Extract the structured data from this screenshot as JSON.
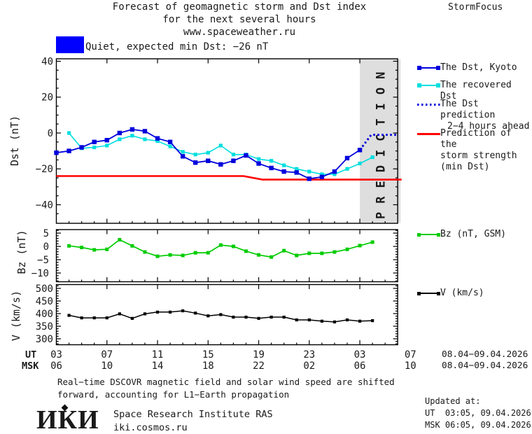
{
  "header": {
    "title_line1": "Forecast of geomagnetic storm and Dst index",
    "title_line2": "for the next several hours",
    "title_line3": "www.spaceweather.ru",
    "brand": "StormFocus"
  },
  "status_banner": {
    "label": "Quiet, expected min Dst: −26 nT"
  },
  "colors": {
    "kyoto_blue": "#0000dd",
    "recovered_cyan": "#00dede",
    "storm_red": "#ff0000",
    "bz_green": "#00cc00",
    "v_black": "#000000",
    "quiet_blue": "#0000ff",
    "band_gray": "#dedede",
    "band_text": "#c2c2c2",
    "frame_black": "#000000"
  },
  "prediction_band": {
    "label": "PREDICTION"
  },
  "legend": {
    "dst_kyoto": "The Dst, Kyoto",
    "recovered": "The recovered Dst",
    "prediction_line1": "The Dst prediction",
    "prediction_line2": "2−4 hours ahead",
    "storm_line1": "Prediction of the",
    "storm_line2": "storm strength",
    "storm_line3": "(min Dst)",
    "bz": "Bz (nT, GSM)",
    "v": "V (km/s)"
  },
  "x_axis": {
    "ut_header": "UT",
    "msk_header": "MSK",
    "tick_hours": [
      0,
      4,
      8,
      12,
      16,
      20,
      24,
      28
    ],
    "ut_labels": [
      "03",
      "07",
      "11",
      "15",
      "19",
      "23",
      "03",
      "07"
    ],
    "msk_labels": [
      "06",
      "10",
      "14",
      "18",
      "22",
      "02",
      "06",
      "10"
    ],
    "ut_date_range": "08.04−09.04.2026",
    "msk_date_range": "08.04−09.04.2026"
  },
  "chart_data": [
    {
      "type": "line",
      "ylabel": "Dst (nT)",
      "ylim": [
        -50,
        41
      ],
      "tick_values": [
        40,
        20,
        0,
        -20,
        -40
      ],
      "tick_labels": [
        "40",
        "20",
        "0",
        "−20",
        "−40"
      ],
      "x_axis_note": "hours UT, 03 UT 08.04.2026 to 06 UT 09.04.2026, data points hourly",
      "prediction_band_hours": [
        24,
        27
      ],
      "series": [
        {
          "key": "storm",
          "name": "Prediction of the storm strength (min Dst)",
          "color_key": "storm_red",
          "points": [
            [
              0,
              -24
            ],
            [
              14.8,
              -24
            ],
            [
              16.3,
              -26
            ],
            [
              27.3,
              -26
            ]
          ]
        },
        {
          "key": "recovered",
          "name": "The recovered Dst",
          "color_key": "recovered_cyan",
          "t_start": 1,
          "t_step": 1,
          "marker": "square",
          "values": [
            0,
            -8.5,
            -8,
            -7,
            -3.5,
            -1.5,
            -3.5,
            -4.5,
            -7.5,
            -10.5,
            -12,
            -11,
            -7,
            -12,
            -12,
            -14.5,
            -15.5,
            -18,
            -20,
            -21.5,
            -23,
            -23,
            -20,
            -17,
            -13.5
          ]
        },
        {
          "key": "kyoto",
          "name": "The Dst, Kyoto",
          "color_key": "kyoto_blue",
          "t_start": 0,
          "t_step": 1,
          "marker": "square",
          "values": [
            -11,
            -10,
            -8,
            -5,
            -4,
            0,
            2,
            1,
            -3,
            -5,
            -13,
            -16.5,
            -15.5,
            -17.5,
            -15.5,
            -12.5,
            -17,
            -19.5,
            -21.5,
            -22,
            -25.5,
            -24.5,
            -21.5,
            -14,
            -9.5
          ]
        },
        {
          "key": "prediction",
          "name": "The Dst prediction 2−4 hours ahead",
          "color_key": "kyoto_blue",
          "style": "dotted",
          "points": [
            [
              24,
              -9.5
            ],
            [
              24.9,
              -1
            ],
            [
              26.9,
              -1
            ]
          ]
        }
      ]
    },
    {
      "type": "line",
      "ylabel": "Bz (nT)",
      "ylim": [
        -13,
        6
      ],
      "tick_values": [
        5,
        0,
        -5,
        -10
      ],
      "tick_labels": [
        "5",
        "0",
        "−5",
        "−10"
      ],
      "series": [
        {
          "key": "bz",
          "name": "Bz (nT, GSM)",
          "color_key": "bz_green",
          "t_start": 1,
          "t_step": 1,
          "marker": "square",
          "values": [
            0.2,
            -0.4,
            -1.3,
            -1.1,
            2.5,
            0.2,
            -2.1,
            -3.7,
            -3.2,
            -3.4,
            -2.4,
            -2.4,
            0.5,
            0,
            -1.8,
            -3.2,
            -4,
            -1.6,
            -3.4,
            -2.6,
            -2.6,
            -2.1,
            -1.1,
            0.3,
            1.6
          ]
        }
      ]
    },
    {
      "type": "line",
      "ylabel": "V (km/s)",
      "ylim": [
        280,
        515
      ],
      "tick_values": [
        500,
        450,
        400,
        350,
        300
      ],
      "tick_labels": [
        "500",
        "450",
        "400",
        "350",
        "300"
      ],
      "series": [
        {
          "key": "v",
          "name": "V (km/s)",
          "color_key": "v_black",
          "t_start": 1,
          "t_step": 1,
          "marker": "square",
          "values": [
            393,
            383,
            383,
            383,
            399,
            381,
            399,
            406,
            406,
            411,
            402,
            391,
            396,
            386,
            386,
            381,
            386,
            386,
            375,
            375,
            370,
            367,
            375,
            370,
            372
          ]
        }
      ]
    }
  ],
  "footer": {
    "note_line1": "Real−time DSCOVR magnetic field and solar wind speed are shifted",
    "note_line2": "forward, accounting for L1−Earth propagation",
    "logo": "ИКИ",
    "org": "Space Research Institute RAS",
    "site": "iki.cosmos.ru",
    "updated_label": "Updated at:",
    "updated_ut": "UT  03:05, 09.04.2026",
    "updated_msk": "MSK 06:05, 09.04.2026"
  }
}
